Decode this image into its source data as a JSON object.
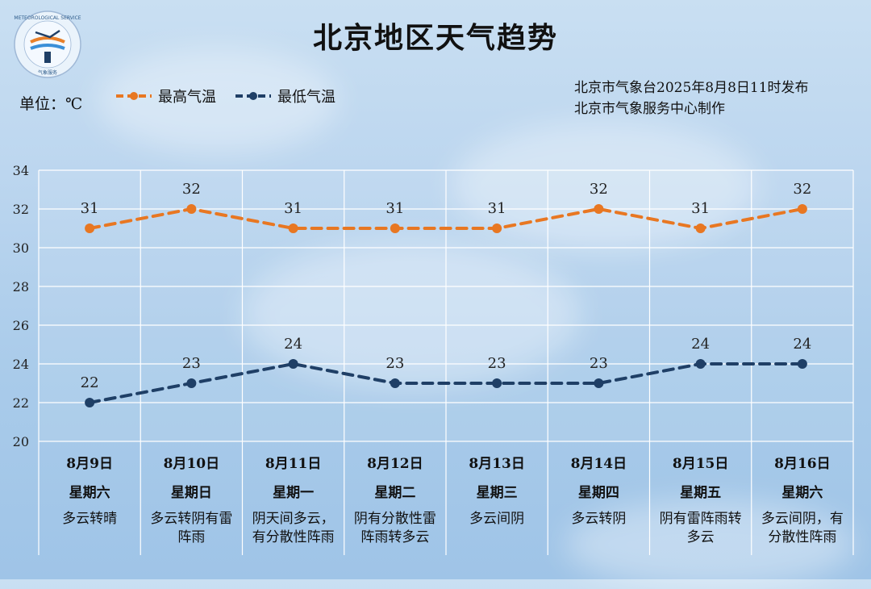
{
  "header": {
    "title": "北京地区天气趋势",
    "unit_label": "单位：℃",
    "issuer_line1": "北京市气象台2025年8月8日11时发布",
    "issuer_line2": "北京市气象服务中心制作"
  },
  "colors": {
    "high": "#e87722",
    "low": "#1f3f66",
    "grid": "#ffffff"
  },
  "chart_data": {
    "type": "line",
    "categories": [
      "8月9日",
      "8月10日",
      "8月11日",
      "8月12日",
      "8月13日",
      "8月14日",
      "8月15日",
      "8月16日"
    ],
    "weekdays": [
      "星期六",
      "星期日",
      "星期一",
      "星期二",
      "星期三",
      "星期四",
      "星期五",
      "星期六"
    ],
    "weather": [
      [
        "多云转晴"
      ],
      [
        "多云转阴有雷",
        "阵雨"
      ],
      [
        "阴天间多云，",
        "有分散性阵雨"
      ],
      [
        "阴有分散性雷",
        "阵雨转多云"
      ],
      [
        "多云间阴"
      ],
      [
        "多云转阴"
      ],
      [
        "阴有雷阵雨转",
        "多云"
      ],
      [
        "多云间阴，有",
        "分散性阵雨"
      ]
    ],
    "series": [
      {
        "name": "最高气温",
        "values": [
          31,
          32,
          31,
          31,
          31,
          32,
          31,
          32
        ]
      },
      {
        "name": "最低气温",
        "values": [
          22,
          23,
          24,
          23,
          23,
          23,
          24,
          24
        ]
      }
    ],
    "ylim": [
      20,
      34
    ],
    "yticks": [
      20,
      22,
      24,
      26,
      28,
      30,
      32,
      34
    ],
    "grid": true,
    "legend_position": "top-left"
  }
}
